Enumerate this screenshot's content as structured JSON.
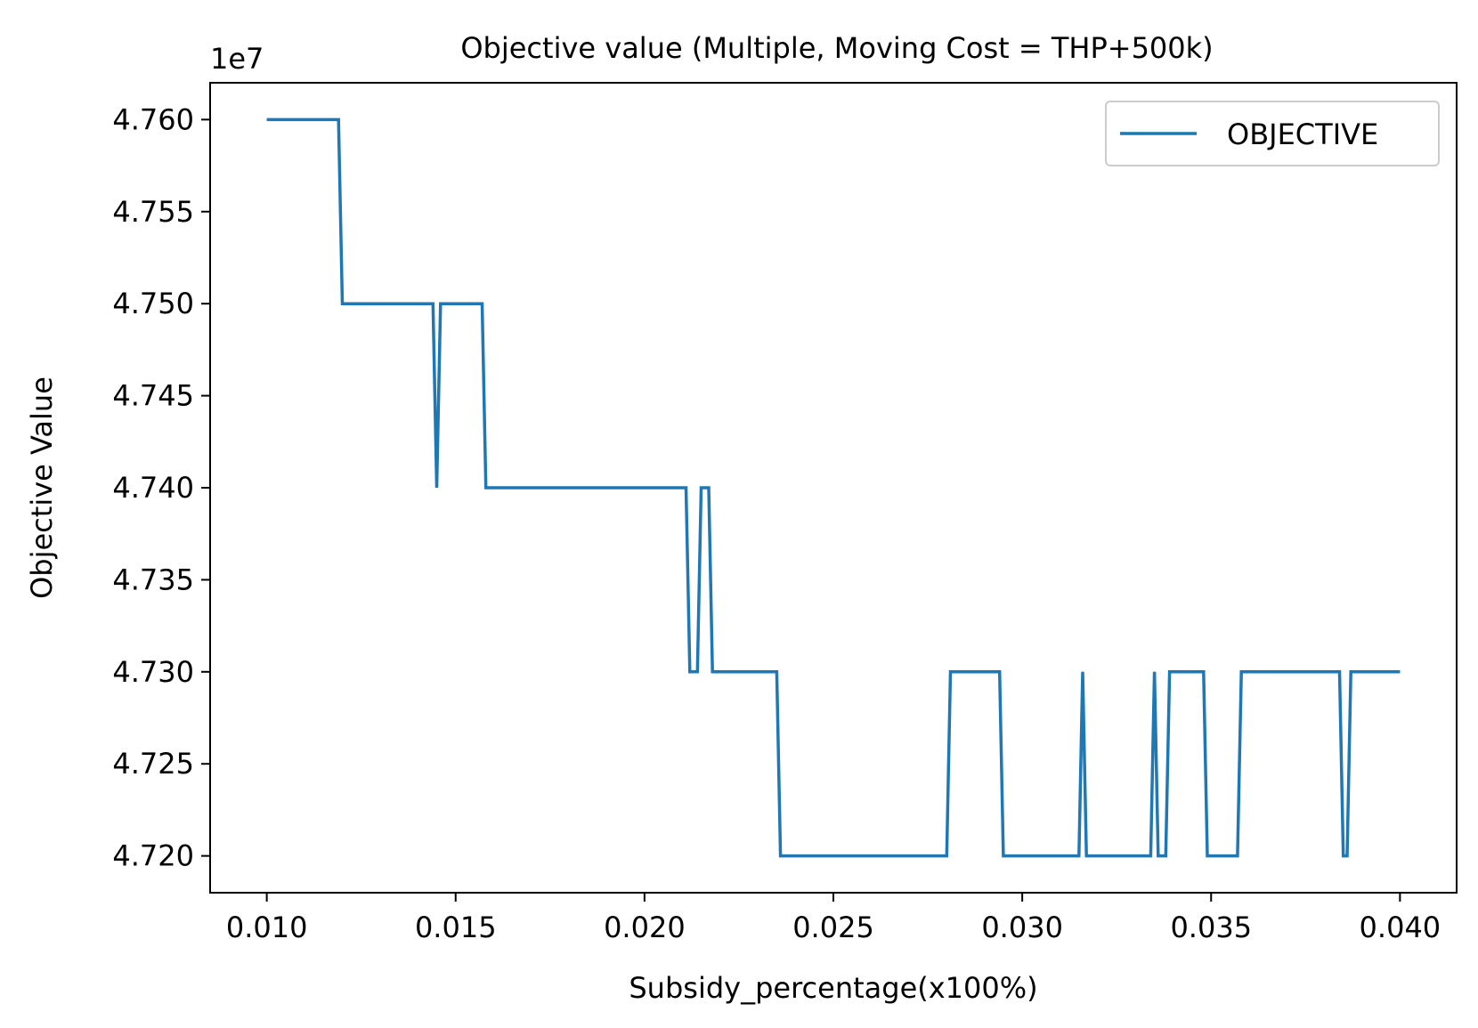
{
  "chart_data": {
    "type": "line",
    "title": "Objective value (Multiple, Moving Cost = THP+500k)",
    "xlabel": "Subsidy_percentage(x100%)",
    "ylabel": "Objective Value",
    "offset_text": "1e7",
    "xlim": [
      0.0085,
      0.0415
    ],
    "ylim": [
      47180000,
      47620000
    ],
    "x_ticks": [
      0.01,
      0.015,
      0.02,
      0.025,
      0.03,
      0.035,
      0.04
    ],
    "x_tick_labels": [
      "0.010",
      "0.015",
      "0.020",
      "0.025",
      "0.030",
      "0.035",
      "0.040"
    ],
    "y_ticks": [
      47200000,
      47250000,
      47300000,
      47350000,
      47400000,
      47450000,
      47500000,
      47550000,
      47600000
    ],
    "y_tick_labels": [
      "4.720",
      "4.725",
      "4.730",
      "4.735",
      "4.740",
      "4.745",
      "4.750",
      "4.755",
      "4.760"
    ],
    "grid": false,
    "legend_position": "upper-right",
    "series": [
      {
        "name": "OBJECTIVE",
        "color": "#1f77b4",
        "x": [
          0.01,
          0.0119,
          0.012,
          0.0144,
          0.0145,
          0.0146,
          0.0157,
          0.0158,
          0.0211,
          0.0212,
          0.0213,
          0.0214,
          0.0215,
          0.0217,
          0.0218,
          0.0219,
          0.0235,
          0.0236,
          0.028,
          0.0281,
          0.0294,
          0.0295,
          0.0315,
          0.0316,
          0.0317,
          0.0334,
          0.0335,
          0.0336,
          0.0338,
          0.0339,
          0.0348,
          0.0349,
          0.0357,
          0.0358,
          0.0384,
          0.0385,
          0.0386,
          0.0387,
          0.04
        ],
        "values": [
          47600000,
          47600000,
          47500000,
          47500000,
          47400000,
          47500000,
          47500000,
          47400000,
          47400000,
          47300000,
          47300000,
          47300000,
          47400000,
          47400000,
          47300000,
          47300000,
          47300000,
          47200000,
          47200000,
          47300000,
          47300000,
          47200000,
          47200000,
          47300000,
          47200000,
          47200000,
          47300000,
          47200000,
          47200000,
          47300000,
          47300000,
          47200000,
          47200000,
          47300000,
          47300000,
          47200000,
          47200000,
          47300000,
          47300000
        ]
      }
    ]
  }
}
